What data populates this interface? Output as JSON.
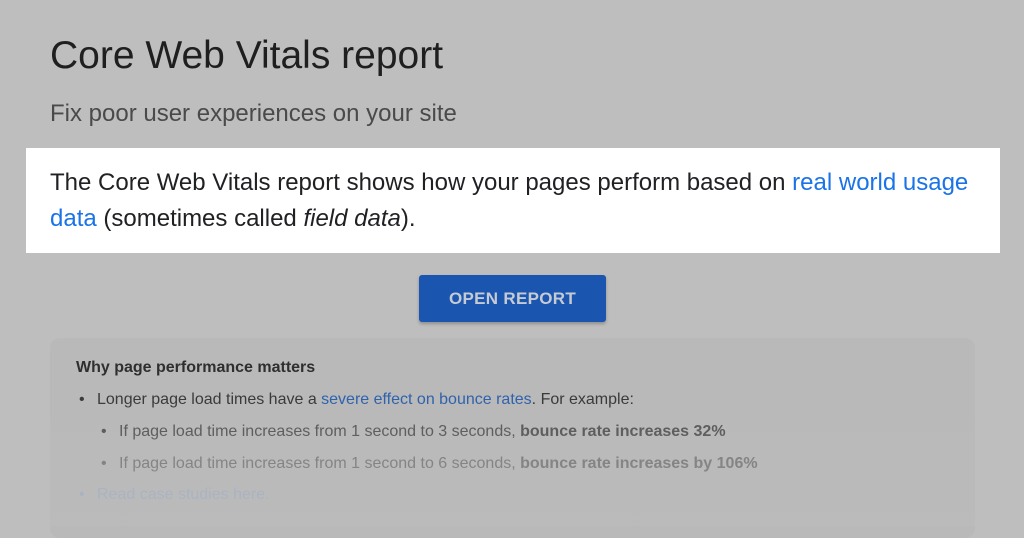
{
  "header": {
    "title": "Core Web Vitals report",
    "subtitle": "Fix poor user experiences on your site"
  },
  "highlight": {
    "text_before": "The Core Web Vitals report shows how your pages perform based on ",
    "link": "real world usage data",
    "text_middle": " (sometimes called ",
    "italic": "field data",
    "text_after": ")."
  },
  "button": {
    "label": "OPEN REPORT",
    "color": "#1a56b0"
  },
  "card": {
    "title": "Why page performance matters",
    "item1": {
      "before": "Longer page load times have a ",
      "link": "severe effect on bounce rates",
      "after": ". For example:"
    },
    "item2": {
      "text": "If page load time increases from 1 second to 3 seconds, ",
      "bold": "bounce rate increases 32%"
    },
    "item3": {
      "text": "If page load time increases from 1 second to 6 seconds, ",
      "bold": "bounce rate increases by 106%"
    },
    "item4": {
      "link": "Read case studies here."
    }
  }
}
